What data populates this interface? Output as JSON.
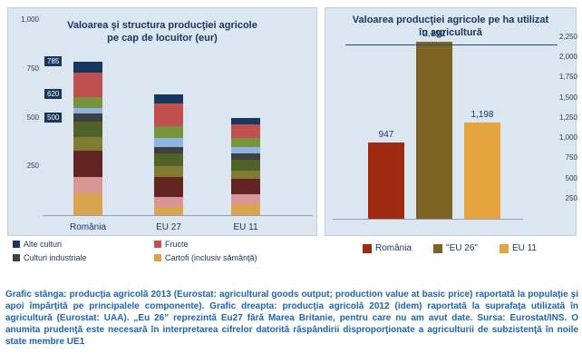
{
  "footer": {
    "text": "Grafic stânga: producţia agricolă 2013 (Eurostat: agricultural goods output; production value at basic price) raportată la populaţie şi apoi împărţită pe principalele componente). Grafic dreapta: producţia agricolă 2012 (idem) raportată la suprafaţa utilizată în agricultură (Eurostat: UAA). „Eu 26” reprezintă Eu27 fără Marea Britanie, pentru care nu am avut date. Sursa: Eurostat/INS. O anumita prudenţă este necesară în interpretarea cifrelor datorită răspândirii disproporţionate a agriculturii de subzistenţă în noile state membre UE1",
    "text_color": "#1D64B0"
  },
  "chart_data": [
    {
      "type": "bar",
      "stacked": true,
      "title": "Valoarea şi structura producţiei agricole pe cap de locuitor (eur)",
      "title_lines": [
        "Valoarea şi  structura producţiei agricole",
        "pe cap de locuitor  (eur)"
      ],
      "categories": [
        "România",
        "EU 27",
        "EU 11"
      ],
      "totals": [
        785,
        620,
        500
      ],
      "total_labels": [
        "785",
        "620",
        "500"
      ],
      "ylim": [
        0,
        1000
      ],
      "ytick_values": [
        1000,
        750,
        500,
        250
      ],
      "ytick_labels": [
        "1,000",
        "750",
        "500",
        "250"
      ],
      "grid": false,
      "legend_position": "bottom",
      "panel_background": "#DCE6F1",
      "series": [
        {
          "name": "Cartofi (inclusiv sămânţă)",
          "color": "#D9A44D",
          "values": [
            110,
            40,
            55
          ]
        },
        {
          "name": "unlabeled-rose",
          "color": "#D99694",
          "values": [
            85,
            55,
            50
          ]
        },
        {
          "name": "unlabeled-maroon",
          "color": "#632523",
          "values": [
            135,
            100,
            80
          ]
        },
        {
          "name": "unlabeled-olive",
          "color": "#827C33",
          "values": [
            70,
            55,
            45
          ]
        },
        {
          "name": "unlabeled-dark-green",
          "color": "#4F6228",
          "values": [
            80,
            65,
            55
          ]
        },
        {
          "name": "Culturi industriale",
          "color": "#404040",
          "values": [
            40,
            35,
            30
          ]
        },
        {
          "name": "unlabeled-light-blue",
          "color": "#8EB4E3",
          "values": [
            30,
            45,
            35
          ]
        },
        {
          "name": "unlabeled-green",
          "color": "#77933C",
          "values": [
            55,
            60,
            45
          ]
        },
        {
          "name": "Fructe",
          "color": "#C0504D",
          "values": [
            125,
            115,
            70
          ]
        },
        {
          "name": "Alte culturi",
          "color": "#17375E",
          "values": [
            55,
            50,
            35
          ]
        }
      ],
      "legend": [
        {
          "label": "Alte culturi",
          "color": "#17375E"
        },
        {
          "label": "Fructe",
          "color": "#C0504D"
        },
        {
          "label": "Culturi industriale",
          "color": "#404040"
        },
        {
          "label": "Cartofi (inclusiv sămânţă)",
          "color": "#D9A44D"
        }
      ]
    },
    {
      "type": "bar",
      "stacked": false,
      "title": "Valoarea producţiei agricole pe ha utilizat în agricultură",
      "title_lines": [
        "Valoarea producţiei agricole pe ha utilizat",
        "în agricultură"
      ],
      "categories": [
        "România",
        "\"EU 26\"",
        "EU 11"
      ],
      "values": [
        947,
        2192,
        1198
      ],
      "value_labels": [
        "947",
        "2,192",
        "1,198"
      ],
      "colors": [
        "#9E2A0F",
        "#7E6424",
        "#E5A43D"
      ],
      "ylim": [
        0,
        2250
      ],
      "yaxis_side": "right",
      "ytick_values": [
        2250,
        2000,
        1750,
        1500,
        1250,
        1000,
        750,
        500,
        250
      ],
      "ytick_labels": [
        "2,250",
        "2,000",
        "1,750",
        "1,500",
        "1,250",
        "1,000",
        "750",
        "500",
        "250"
      ],
      "grid": false,
      "legend_position": "bottom",
      "panel_background": "#DCE6F1",
      "legend": [
        {
          "label": "România",
          "color": "#9E2A0F"
        },
        {
          "label": "\"EU 26\"",
          "color": "#7E6424"
        },
        {
          "label": "EU 11",
          "color": "#E5A43D"
        }
      ]
    }
  ]
}
